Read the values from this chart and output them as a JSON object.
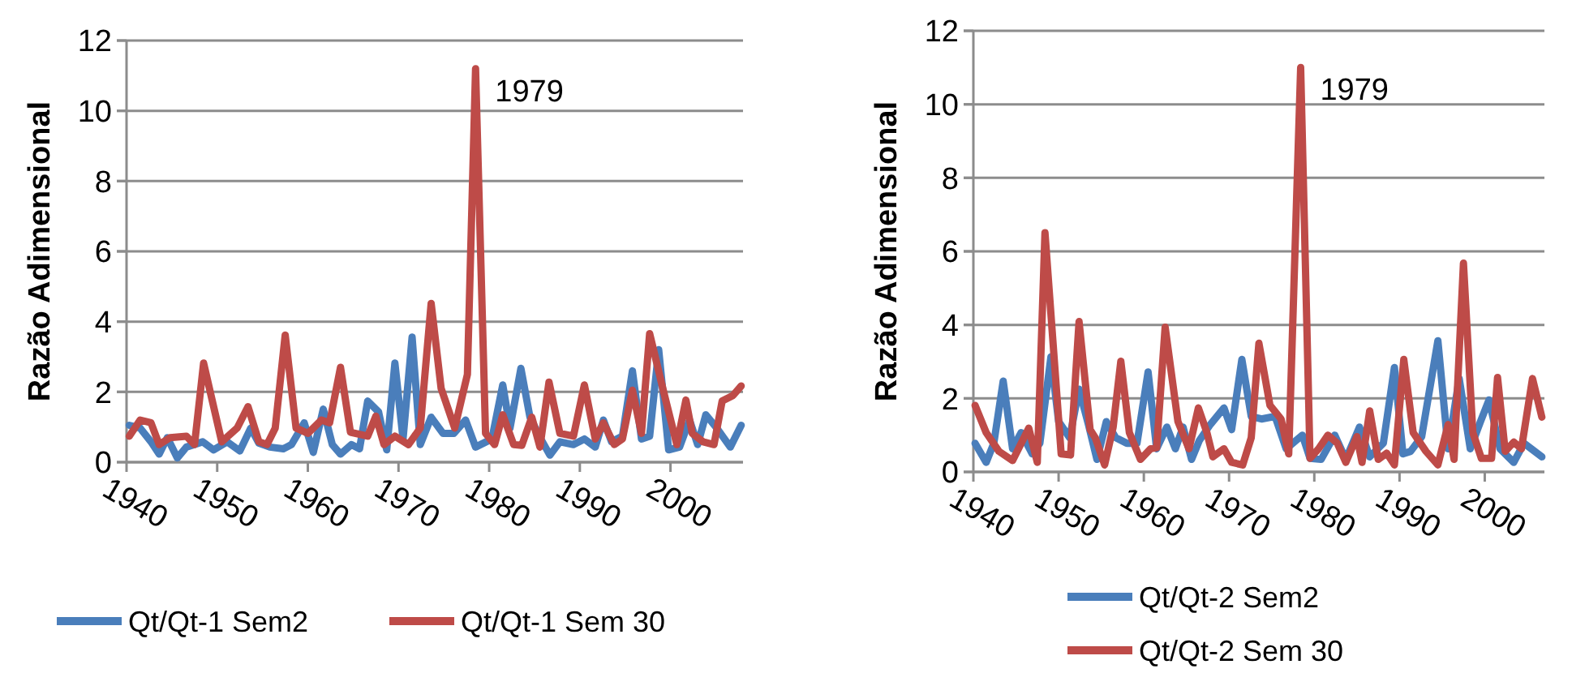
{
  "chart_data": [
    {
      "type": "line",
      "ylabel": "Razão Adimensional",
      "xlim": [
        1940,
        2008
      ],
      "xticks": [
        1940,
        1950,
        1960,
        1970,
        1980,
        1990,
        2000
      ],
      "ylim": [
        0,
        12
      ],
      "yticks": [
        0,
        2,
        4,
        6,
        8,
        10,
        12
      ],
      "grid": "y",
      "legend": "bottom",
      "annotations": [
        {
          "text": "1979",
          "x": 1978.5,
          "y": 11.2
        }
      ],
      "series": [
        {
          "name": "Qt/Qt-1 Sem2",
          "color": "#4a7ebb",
          "x": [
            1940.3,
            1941.5,
            1942.7,
            1943.6,
            1944.5,
            1945.6,
            1946.6,
            1948.4,
            1949.6,
            1951.1,
            1952.5,
            1953.7,
            1954.6,
            1955.8,
            1957.3,
            1958.2,
            1959.6,
            1960.6,
            1961.7,
            1962.7,
            1963.6,
            1964.8,
            1965.7,
            1966.6,
            1967.8,
            1968.7,
            1969.6,
            1970.5,
            1971.5,
            1972.4,
            1973.6,
            1974.9,
            1976.1,
            1977.4,
            1978.5,
            1980.3,
            1981.5,
            1982.3,
            1983.5,
            1984.5,
            1985.7,
            1986.7,
            1987.8,
            1989.3,
            1990.5,
            1991.7,
            1992.6,
            1993.5,
            1994.7,
            1995.8,
            1996.8,
            1997.7,
            1998.7,
            1999.8,
            2001,
            2002.1,
            2003,
            2003.9,
            2005.1,
            2006.6,
            2007.8
          ],
          "values": [
            1.05,
            0.97,
            0.58,
            0.23,
            0.7,
            0.12,
            0.43,
            0.58,
            0.35,
            0.58,
            0.32,
            0.97,
            0.54,
            0.43,
            0.38,
            0.5,
            1.12,
            0.28,
            1.51,
            0.5,
            0.23,
            0.5,
            0.38,
            1.74,
            1.43,
            0.35,
            2.82,
            0.66,
            3.56,
            0.5,
            1.28,
            0.82,
            0.82,
            1.2,
            0.43,
            0.66,
            2.2,
            0.97,
            2.67,
            1.28,
            0.66,
            0.2,
            0.58,
            0.5,
            0.66,
            0.43,
            1.2,
            0.58,
            0.74,
            2.6,
            0.66,
            0.74,
            3.2,
            0.35,
            0.43,
            1.2,
            0.5,
            1.35,
            0.97,
            0.43,
            1.05
          ]
        },
        {
          "name": "Qt/Qt-1 Sem 30",
          "color": "#be4b48",
          "x": [
            1940.3,
            1941.5,
            1942.7,
            1943.6,
            1944.8,
            1946.6,
            1947.5,
            1948.5,
            1950.5,
            1952.2,
            1953.4,
            1954.6,
            1955.5,
            1956.4,
            1957.5,
            1958.7,
            1960,
            1961.5,
            1962.4,
            1963.6,
            1964.7,
            1966.6,
            1967.5,
            1968.4,
            1969.6,
            1971.1,
            1972.4,
            1973.6,
            1974.7,
            1976.2,
            1977.6,
            1978.5,
            1979.6,
            1980.6,
            1981.5,
            1982.7,
            1983.6,
            1984.7,
            1985.6,
            1986.6,
            1987.8,
            1989.3,
            1990.5,
            1991.7,
            1992.6,
            1993.8,
            1994.7,
            1995.8,
            1996.8,
            1997.7,
            1999.2,
            2000.7,
            2001.7,
            2002.4,
            2003.6,
            2004.8,
            2005.7,
            2006.9,
            2007.8
          ],
          "values": [
            0.74,
            1.2,
            1.12,
            0.5,
            0.7,
            0.74,
            0.5,
            2.82,
            0.58,
            0.97,
            1.58,
            0.58,
            0.5,
            0.97,
            3.62,
            0.97,
            0.82,
            1.2,
            1.12,
            2.7,
            0.85,
            0.74,
            1.31,
            0.5,
            0.74,
            0.5,
            0.97,
            4.52,
            2.1,
            0.97,
            2.5,
            11.2,
            0.82,
            0.5,
            1.35,
            0.5,
            0.48,
            1.28,
            0.43,
            2.28,
            0.82,
            0.74,
            2.2,
            0.66,
            1.12,
            0.5,
            0.66,
            2.05,
            0.82,
            3.66,
            2.05,
            0.5,
            1.77,
            0.82,
            0.58,
            0.5,
            1.74,
            1.9,
            2.17
          ]
        }
      ]
    },
    {
      "type": "line",
      "ylabel": "Razão Adimensional",
      "xlim": [
        1940,
        2007
      ],
      "xticks": [
        1940,
        1950,
        1960,
        1970,
        1980,
        1990,
        2000
      ],
      "ylim": [
        0,
        12
      ],
      "yticks": [
        0,
        2,
        4,
        6,
        8,
        10,
        12
      ],
      "grid": "y",
      "legend": "bottom",
      "annotations": [
        {
          "text": "1979",
          "x": 1978.4,
          "y": 11
        }
      ],
      "series": [
        {
          "name": "Qt/Qt-2 Sem2",
          "color": "#4a7ebb",
          "x": [
            1940.2,
            1941.5,
            1942.4,
            1943.5,
            1944.6,
            1945.6,
            1946.9,
            1947.8,
            1949.1,
            1950,
            1951.3,
            1952.4,
            1953.5,
            1954.5,
            1955.6,
            1956.7,
            1958,
            1959.2,
            1960.5,
            1961.5,
            1962.7,
            1963.7,
            1964.6,
            1965.6,
            1966.5,
            1967.8,
            1969.4,
            1970.3,
            1971.5,
            1972.6,
            1973.8,
            1975.4,
            1976.7,
            1978.6,
            1979.5,
            1980.8,
            1982.4,
            1983.7,
            1985.3,
            1986.5,
            1988.1,
            1989.4,
            1990.4,
            1991.3,
            1992.6,
            1994.5,
            1995.7,
            1997,
            1998.3,
            1999.5,
            2000.5,
            2001.8,
            2003.4,
            2004.6,
            2006.7
          ],
          "values": [
            0.78,
            0.26,
            0.78,
            2.47,
            0.63,
            1.07,
            0.49,
            0.78,
            3.13,
            1.37,
            0.93,
            2.25,
            1.29,
            0.34,
            1.37,
            0.93,
            0.78,
            0.78,
            2.72,
            0.63,
            1.22,
            0.63,
            1.22,
            0.34,
            0.85,
            1.29,
            1.74,
            1.15,
            3.06,
            1.51,
            1.44,
            1.51,
            0.63,
            1.0,
            0.37,
            0.34,
            1.0,
            0.34,
            1.22,
            0.41,
            0.78,
            2.84,
            0.49,
            0.56,
            0.96,
            3.57,
            0.63,
            2.54,
            0.63,
            1.37,
            1.96,
            0.63,
            0.26,
            0.78,
            0.41
          ]
        },
        {
          "name": "Qt/Qt-2 Sem 30",
          "color": "#be4b48",
          "x": [
            1940.2,
            1941.5,
            1943,
            1944.6,
            1946.5,
            1947.5,
            1948.4,
            1950.3,
            1951.4,
            1952.4,
            1953.7,
            1954.3,
            1955.4,
            1956.4,
            1957.3,
            1958.3,
            1959.6,
            1960.8,
            1961.5,
            1962.5,
            1964,
            1965.3,
            1966.4,
            1967.4,
            1968.1,
            1969.4,
            1970.3,
            1971.6,
            1972.6,
            1973.5,
            1974.8,
            1976.1,
            1977,
            1978.4,
            1979.5,
            1980.5,
            1981.6,
            1982.7,
            1983.7,
            1985,
            1985.6,
            1986.5,
            1987.5,
            1988.5,
            1989.4,
            1990.5,
            1991.6,
            1993.1,
            1994.5,
            1995.7,
            1996.4,
            1997.5,
            1998.6,
            1999.6,
            2000.8,
            2001.5,
            2002.4,
            2003.4,
            2004.3,
            2005.6,
            2006.7
          ],
          "values": [
            1.81,
            1.07,
            0.56,
            0.31,
            1.19,
            0.26,
            6.51,
            0.49,
            0.46,
            4.09,
            1.15,
            0.93,
            0.19,
            1.22,
            3.01,
            1.07,
            0.34,
            0.63,
            0.66,
            3.94,
            1.37,
            0.63,
            1.74,
            1.07,
            0.41,
            0.63,
            0.26,
            0.19,
            0.93,
            3.5,
            1.81,
            1.44,
            0.49,
            11.0,
            0.37,
            0.63,
            1.0,
            0.78,
            0.26,
            0.96,
            0.26,
            1.66,
            0.34,
            0.51,
            0.19,
            3.06,
            1.07,
            0.56,
            0.19,
            1.29,
            0.34,
            5.68,
            1.07,
            0.37,
            0.37,
            2.57,
            0.56,
            0.81,
            0.63,
            2.54,
            1.49
          ]
        }
      ]
    }
  ]
}
